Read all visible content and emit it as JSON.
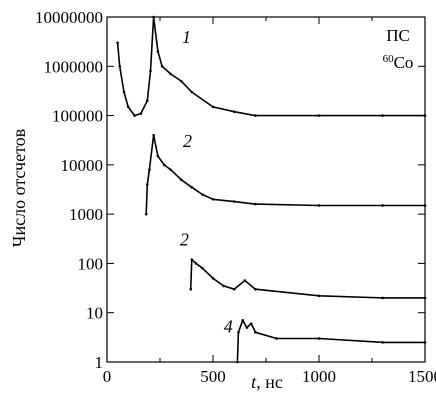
{
  "chart_data": {
    "type": "line",
    "title": "",
    "xlabel_var": "t",
    "xlabel_unit": ", нс",
    "ylabel": "Число отсчетов",
    "x_scale": "linear",
    "y_scale": "log",
    "xlim": [
      0,
      1500
    ],
    "ylim": [
      1,
      10000000
    ],
    "x_ticks": [
      {
        "value": 0,
        "label": "0"
      },
      {
        "value": 500,
        "label": "500"
      },
      {
        "value": 1000,
        "label": "1000"
      },
      {
        "value": 1500,
        "label": "1500"
      }
    ],
    "y_ticks": [
      {
        "value": 1,
        "label": "1"
      },
      {
        "value": 10,
        "label": "10"
      },
      {
        "value": 100,
        "label": "100"
      },
      {
        "value": 1000,
        "label": "1000"
      },
      {
        "value": 10000,
        "label": "10000"
      },
      {
        "value": 100000,
        "label": "100000"
      },
      {
        "value": 1000000,
        "label": "1000000"
      },
      {
        "value": 10000000,
        "label": "10000000"
      }
    ],
    "annotation": {
      "line1": "ПС",
      "isotope_mass": "60",
      "isotope_symbol": "Co"
    },
    "series": [
      {
        "label": "1",
        "label_at": [
          375,
          3000000
        ],
        "x": [
          50,
          60,
          80,
          100,
          130,
          160,
          190,
          205,
          220,
          240,
          260,
          300,
          350,
          400,
          500,
          600,
          700,
          1000,
          1300,
          1500
        ],
        "y": [
          3000000,
          1000000,
          300000,
          150000,
          100000,
          110000,
          200000,
          800000,
          10000000,
          2000000,
          1000000,
          700000,
          500000,
          300000,
          150000,
          120000,
          100000,
          100000,
          100000,
          100000
        ]
      },
      {
        "label": "2",
        "label_at": [
          380,
          23000
        ],
        "x": [
          185,
          190,
          200,
          220,
          240,
          270,
          300,
          350,
          400,
          450,
          500,
          600,
          700,
          1000,
          1300,
          1500
        ],
        "y": [
          1000,
          4000,
          8000,
          40000,
          15000,
          10000,
          8000,
          5000,
          3500,
          2500,
          2000,
          1800,
          1600,
          1500,
          1500,
          1500
        ]
      },
      {
        "label": "2",
        "label_at": [
          365,
          230
        ],
        "x": [
          395,
          400,
          420,
          450,
          500,
          550,
          600,
          650,
          700,
          1000,
          1300,
          1500
        ],
        "y": [
          30,
          120,
          100,
          80,
          50,
          35,
          30,
          45,
          30,
          22,
          20,
          20
        ]
      },
      {
        "label": "4",
        "label_at": [
          572,
          4
        ],
        "x": [
          615,
          620,
          640,
          660,
          680,
          700,
          800,
          1000,
          1300,
          1500
        ],
        "y": [
          1,
          4,
          7,
          5,
          6,
          4,
          3,
          3,
          2.5,
          2.5
        ]
      }
    ]
  }
}
